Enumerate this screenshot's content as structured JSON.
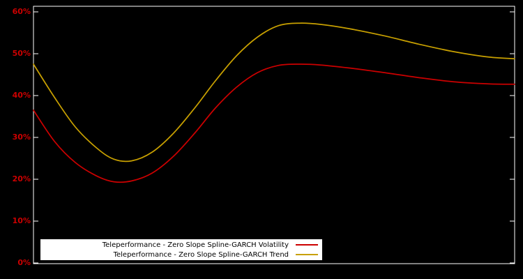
{
  "chart_data": {
    "type": "line",
    "title": "",
    "xlabel": "",
    "ylabel": "",
    "ylim": [
      0,
      60
    ],
    "grid": false,
    "legend_position": "bottom-left-inside",
    "background_color": "#000000",
    "axis_color": "#ffffff",
    "tick_label_color": "#cc0000",
    "y_ticks": [
      "0%",
      "10%",
      "20%",
      "30%",
      "40%",
      "50%",
      "60%"
    ],
    "y_tick_values": [
      0,
      10,
      20,
      30,
      40,
      50,
      60
    ],
    "x": [
      0,
      0.044,
      0.087,
      0.131,
      0.167,
      0.204,
      0.247,
      0.291,
      0.335,
      0.378,
      0.422,
      0.466,
      0.509,
      0.553,
      0.597,
      0.655,
      0.728,
      0.8,
      0.873,
      0.946,
      1.0
    ],
    "series": [
      {
        "name": "Teleperformance - Zero Slope Spline-GARCH Volatility",
        "color": "#cc0000",
        "values": [
          36.5,
          29.0,
          24.0,
          20.8,
          19.4,
          19.6,
          21.5,
          25.5,
          31.0,
          37.0,
          42.0,
          45.5,
          47.2,
          47.5,
          47.3,
          46.6,
          45.5,
          44.3,
          43.3,
          42.8,
          42.7
        ]
      },
      {
        "name": "Teleperformance - Zero Slope Spline-GARCH Trend",
        "color": "#c8a000",
        "values": [
          47.5,
          39.5,
          32.5,
          27.5,
          24.8,
          24.4,
          26.5,
          31.0,
          37.0,
          43.5,
          49.5,
          54.0,
          56.7,
          57.3,
          57.0,
          56.0,
          54.3,
          52.3,
          50.5,
          49.2,
          48.8
        ]
      }
    ]
  },
  "legend": {
    "items": [
      {
        "label": "Teleperformance - Zero Slope Spline-GARCH Volatility",
        "color": "#cc0000"
      },
      {
        "label": "Teleperformance - Zero Slope Spline-GARCH Trend",
        "color": "#c8a000"
      }
    ]
  }
}
